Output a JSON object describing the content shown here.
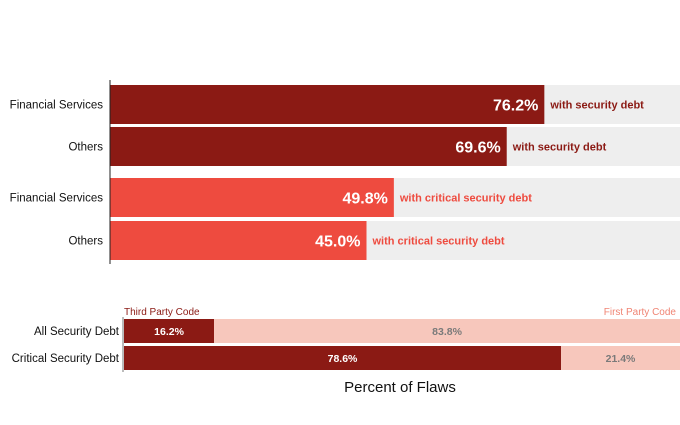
{
  "colors": {
    "dark_red": "#8b1a14",
    "bright_red": "#ee4b3f",
    "track_gray": "#eeeeee",
    "salmon_light": "#f7c7bc",
    "salmon_text": "#f08473",
    "dark_text": "#111111",
    "mid_text": "#7a7a7a"
  },
  "chart_data": [
    {
      "type": "bar",
      "orientation": "horizontal",
      "xlim": [
        0,
        100
      ],
      "grid": false,
      "bars": [
        {
          "category": "Financial Services",
          "value": 76.2,
          "value_label": "76.2%",
          "annotation": "with security debt",
          "color": "#8b1a14"
        },
        {
          "category": "Others",
          "value": 69.6,
          "value_label": "69.6%",
          "annotation": "with security debt",
          "color": "#8b1a14"
        },
        {
          "category": "Financial Services",
          "value": 49.8,
          "value_label": "49.8%",
          "annotation": "with critical security debt",
          "color": "#ee4b3f"
        },
        {
          "category": "Others",
          "value": 45.0,
          "value_label": "45.0%",
          "annotation": "with critical security debt",
          "color": "#ee4b3f"
        }
      ]
    },
    {
      "type": "bar",
      "orientation": "horizontal",
      "stacked": true,
      "xlabel": "Percent of Flaws",
      "xlim": [
        0,
        100
      ],
      "categories": [
        "All Security Debt",
        "Critical Security Debt"
      ],
      "series": [
        {
          "name": "Third Party Code",
          "values": [
            16.2,
            78.6
          ],
          "value_labels": [
            "16.2%",
            "78.6%"
          ],
          "color": "#8b1a14"
        },
        {
          "name": "First Party Code",
          "values": [
            83.8,
            21.4
          ],
          "value_labels": [
            "83.8%",
            "21.4%"
          ],
          "color": "#f7c7bc"
        }
      ]
    }
  ]
}
